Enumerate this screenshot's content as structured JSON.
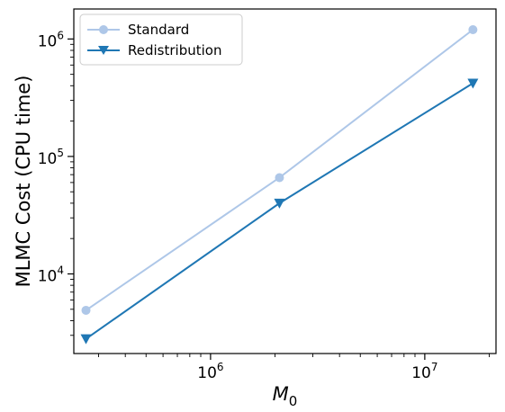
{
  "chart_data": {
    "type": "line",
    "x_scale": "log",
    "y_scale": "log",
    "xlabel": "M",
    "xlabel_subscript": "0",
    "ylabel": "MLMC Cost (CPU time)",
    "xlim": [
      230000,
      21500000
    ],
    "ylim": [
      2100,
      1800000
    ],
    "x_ticks": [
      {
        "value": 1000000,
        "base": "10",
        "exp": "6"
      },
      {
        "value": 10000000,
        "base": "10",
        "exp": "7"
      }
    ],
    "y_ticks": [
      {
        "value": 10000,
        "base": "10",
        "exp": "4"
      },
      {
        "value": 100000,
        "base": "10",
        "exp": "5"
      },
      {
        "value": 1000000,
        "base": "10",
        "exp": "6"
      }
    ],
    "legend_position": "top-left",
    "series": [
      {
        "name": "Standard",
        "color": "#aec7e8",
        "marker": "circle",
        "x": [
          262144,
          2097152,
          16777216
        ],
        "y": [
          4900,
          66000,
          1200000
        ]
      },
      {
        "name": "Redistribution",
        "color": "#1f77b4",
        "marker": "triangle-down",
        "x": [
          262144,
          2097152,
          16777216
        ],
        "y": [
          2800,
          40000,
          420000
        ]
      }
    ]
  }
}
